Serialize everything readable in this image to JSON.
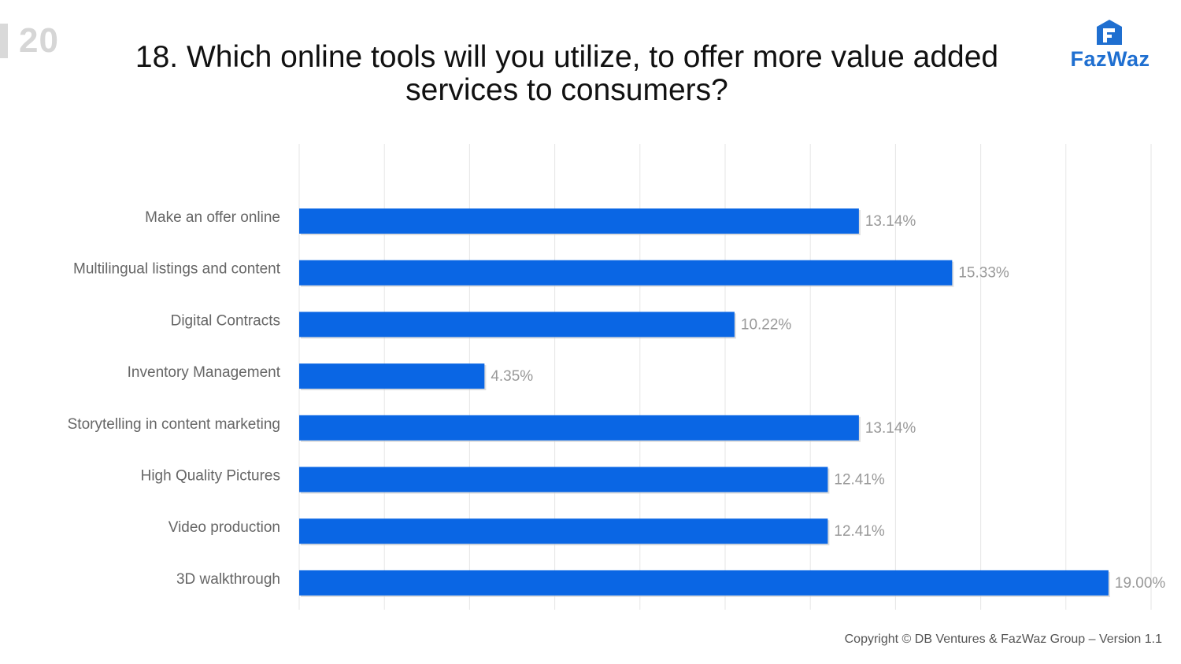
{
  "page": {
    "number": "20",
    "title": "18. Which online tools will you utilize, to offer more value added services to consumers?",
    "logo_text": "FazWaz",
    "copyright": "Copyright © DB Ventures & FazWaz Group – Version 1.1"
  },
  "colors": {
    "bar": "#0a66e4",
    "grid": "#e6e6e6",
    "brand": "#1f6fd0"
  },
  "chart_data": {
    "type": "bar",
    "orientation": "horizontal",
    "categories": [
      "Make an offer online",
      "Multilingual listings and content",
      "Digital Contracts",
      "Inventory Management",
      "Storytelling in content marketing",
      "High Quality Pictures",
      "Video production",
      "3D walkthrough"
    ],
    "values": [
      13.14,
      15.33,
      10.22,
      4.35,
      13.14,
      12.41,
      12.41,
      19.0
    ],
    "value_labels": [
      "13.14%",
      "15.33%",
      "10.22%",
      "4.35%",
      "13.14%",
      "12.41%",
      "12.41%",
      "19.00%"
    ],
    "xlim": [
      0,
      20
    ],
    "x_grid_step": 2,
    "grid": true,
    "legend": "none"
  }
}
